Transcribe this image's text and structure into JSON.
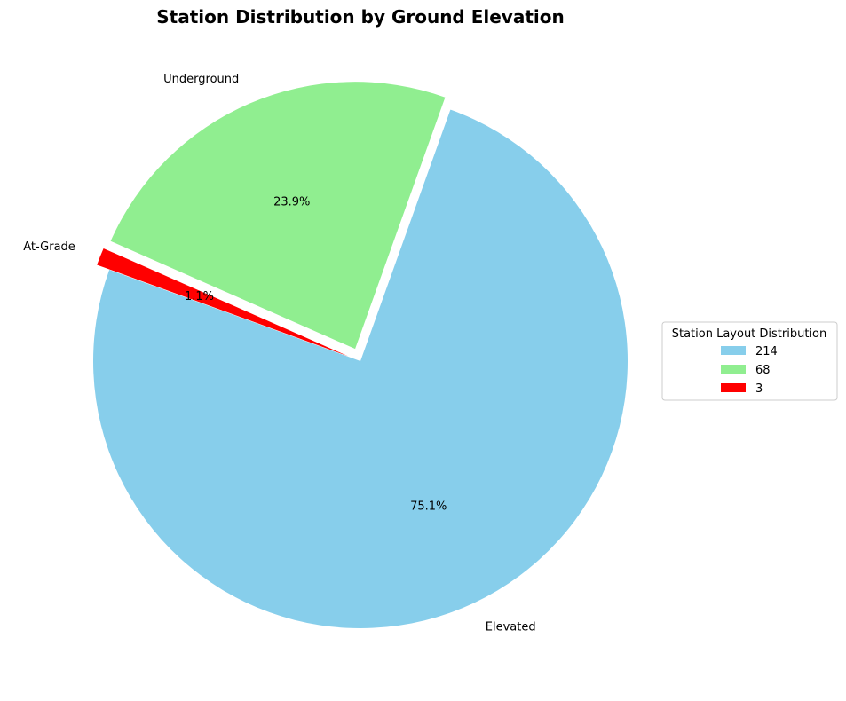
{
  "chart_data": {
    "type": "pie",
    "title": "Station Distribution by Ground Elevation",
    "slices": [
      {
        "label": "Elevated",
        "value": 214,
        "percent_label": "75.1%",
        "color": "#87CEEB",
        "exploded": false
      },
      {
        "label": "Underground",
        "value": 68,
        "percent_label": "23.9%",
        "color": "#90EE90",
        "exploded": true
      },
      {
        "label": "At-Grade",
        "value": 3,
        "percent_label": "1.1%",
        "color": "#FF0000",
        "exploded": true
      }
    ],
    "legend": {
      "title": "Station Layout Distribution",
      "placement": "center-right",
      "entries": [
        "214",
        "68",
        "3"
      ]
    }
  }
}
